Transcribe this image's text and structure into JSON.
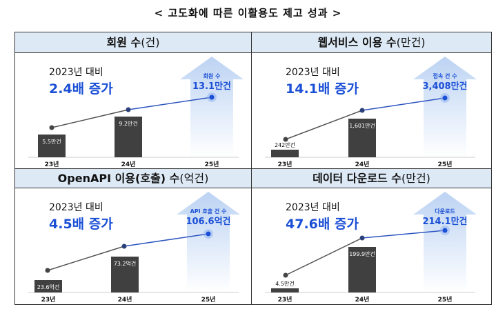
{
  "title": "< 고도화에 따른 이활용도 제고 성과 >",
  "chart_data": [
    {
      "type": "bar+line",
      "title": "회원 수",
      "unit": "(건)",
      "comparison": "2023년 대비",
      "growth": "2.4배 증가",
      "categories": [
        "23년",
        "24년",
        "25년"
      ],
      "values": [
        5.5,
        9.2,
        13.1
      ],
      "labels": [
        "5.5만건",
        "9.2만건",
        "13.1만건"
      ],
      "highlight_label": "회원 수"
    },
    {
      "type": "bar+line",
      "title": "웹서비스 이용 수",
      "unit": "(만건)",
      "comparison": "2023년 대비",
      "growth": "14.1배 증가",
      "categories": [
        "23년",
        "24년",
        "25년"
      ],
      "values": [
        242,
        1601,
        3408
      ],
      "labels": [
        "242만건",
        "1,601만건",
        "3,408만건"
      ],
      "highlight_label": "접속 건 수"
    },
    {
      "type": "bar+line",
      "title": "OpenAPI 이용(호출) 수",
      "unit": "(억건)",
      "comparison": "2023년 대비",
      "growth": "4.5배 증가",
      "categories": [
        "23년",
        "24년",
        "25년"
      ],
      "values": [
        23.6,
        73.2,
        106.6
      ],
      "labels": [
        "23.6억건",
        "73.2억건",
        "106.6억건"
      ],
      "highlight_label": "API 호출 건 수"
    },
    {
      "type": "bar+line",
      "title": "데이터 다운로드 수",
      "unit": "(만건)",
      "comparison": "2023년 대비",
      "growth": "47.6배 증가",
      "categories": [
        "23년",
        "24년",
        "25년"
      ],
      "values": [
        4.5,
        199.9,
        214.1
      ],
      "labels": [
        "4.5만건",
        "199.9만건",
        "214.1만건"
      ],
      "highlight_label": "다운로드"
    }
  ],
  "colors": {
    "bar": "#404040",
    "accent": "#1a4fd6",
    "header_bg": "#dde9f5",
    "arrow": "#cfe0f7"
  }
}
